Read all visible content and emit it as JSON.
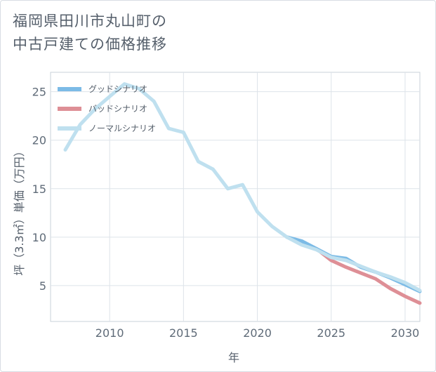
{
  "chart_data": {
    "type": "line",
    "title_lines": [
      "福岡県田川市丸山町の",
      "中古戸建ての価格推移"
    ],
    "xlabel": "年",
    "ylabel": "坪（3.3㎡）単価（万円）",
    "xlim": [
      2006,
      2031
    ],
    "ylim": [
      1.3,
      27
    ],
    "xticks": [
      2010,
      2015,
      2020,
      2025,
      2030
    ],
    "yticks": [
      5,
      10,
      15,
      20,
      25
    ],
    "legend_position": "top-left",
    "grid": true,
    "series": [
      {
        "name": "グッドシナリオ",
        "color": "#7cbbe6",
        "points": [
          [
            2022,
            10.0
          ],
          [
            2023,
            9.6
          ],
          [
            2024,
            8.8
          ],
          [
            2025,
            8.0
          ],
          [
            2026,
            7.8
          ],
          [
            2027,
            6.9
          ],
          [
            2028,
            6.4
          ],
          [
            2029,
            5.8
          ],
          [
            2030,
            5.1
          ],
          [
            2031,
            4.4
          ]
        ]
      },
      {
        "name": "バッドシナリオ",
        "color": "#de8f96",
        "points": [
          [
            2022,
            10.0
          ],
          [
            2023,
            9.5
          ],
          [
            2024,
            8.8
          ],
          [
            2025,
            7.6
          ],
          [
            2026,
            6.9
          ],
          [
            2027,
            6.3
          ],
          [
            2028,
            5.7
          ],
          [
            2029,
            4.7
          ],
          [
            2030,
            3.9
          ],
          [
            2031,
            3.2
          ]
        ]
      },
      {
        "name": "ノーマルシナリオ",
        "color": "#bfe0ef",
        "points": [
          [
            2007,
            19.0
          ],
          [
            2008,
            21.6
          ],
          [
            2009,
            23.2
          ],
          [
            2010,
            24.5
          ],
          [
            2011,
            25.8
          ],
          [
            2012,
            25.3
          ],
          [
            2013,
            24.0
          ],
          [
            2014,
            21.2
          ],
          [
            2015,
            20.8
          ],
          [
            2016,
            17.8
          ],
          [
            2017,
            17.0
          ],
          [
            2018,
            15.0
          ],
          [
            2019,
            15.4
          ],
          [
            2020,
            12.6
          ],
          [
            2021,
            11.1
          ],
          [
            2022,
            10.0
          ],
          [
            2023,
            9.2
          ],
          [
            2024,
            8.7
          ],
          [
            2025,
            7.9
          ],
          [
            2026,
            7.6
          ],
          [
            2027,
            7.0
          ],
          [
            2028,
            6.4
          ],
          [
            2029,
            5.9
          ],
          [
            2030,
            5.3
          ],
          [
            2031,
            4.5
          ]
        ]
      }
    ]
  }
}
